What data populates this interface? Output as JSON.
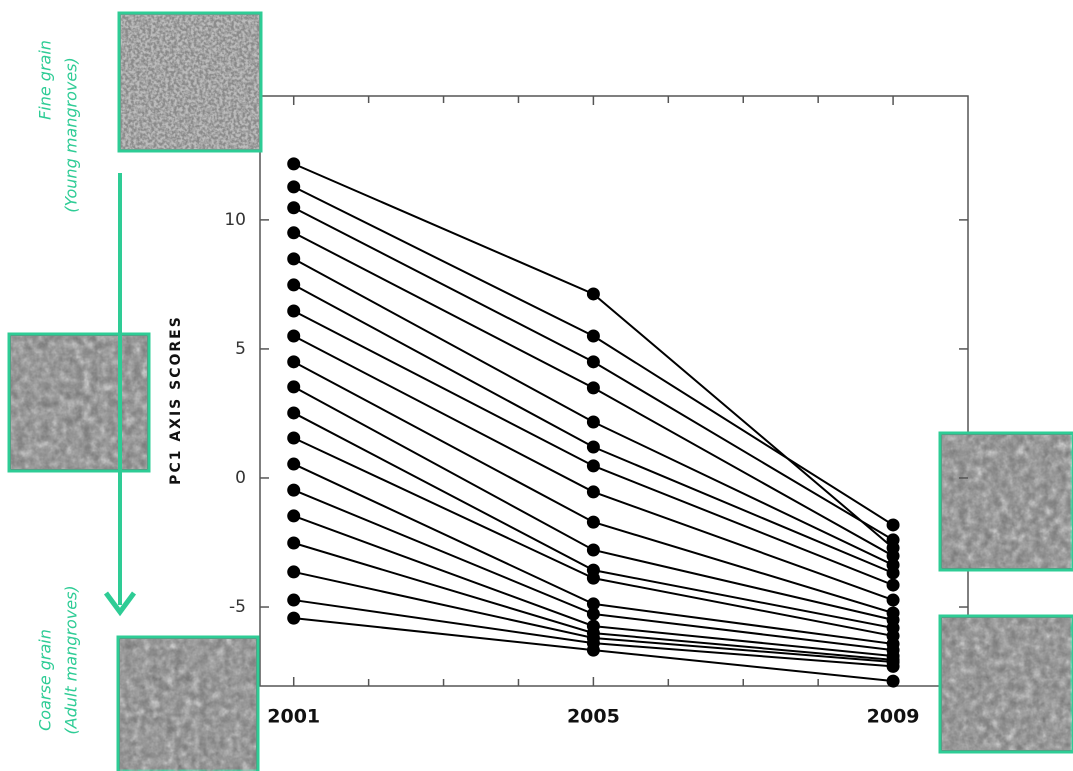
{
  "chart_data": {
    "type": "line",
    "y_label": "PC1 AXIS SCORES",
    "annotations": [
      "Fine grain",
      "(Young mangroves)",
      "Coarse grain",
      "(Adult mangroves)"
    ],
    "x": [
      2001,
      2005,
      2009
    ],
    "xlim": [
      2000.55,
      2010
    ],
    "xticks": [
      2001,
      2005,
      2009
    ],
    "xminorticks": [
      2002,
      2003,
      2004,
      2006,
      2007,
      2008
    ],
    "ylim": [
      -8.06,
      14.8
    ],
    "yticks": [
      -5,
      0,
      5,
      10
    ],
    "color": "#000000",
    "series": [
      {
        "values": [
          12.17,
          7.13,
          -2.71
        ]
      },
      {
        "values": [
          11.28,
          5.5,
          -1.82
        ]
      },
      {
        "values": [
          10.47,
          4.5,
          -2.4
        ]
      },
      {
        "values": [
          9.5,
          3.49,
          -3.02
        ]
      },
      {
        "values": [
          8.49,
          2.17,
          -3.37
        ]
      },
      {
        "values": [
          7.48,
          1.2,
          -3.68
        ]
      },
      {
        "values": [
          6.47,
          0.47,
          -4.15
        ]
      },
      {
        "values": [
          5.5,
          -0.54,
          -4.73
        ]
      },
      {
        "values": [
          4.5,
          -1.71,
          -5.23
        ]
      },
      {
        "values": [
          3.53,
          -2.79,
          -5.5
        ]
      },
      {
        "values": [
          2.52,
          -3.57,
          -5.81
        ]
      },
      {
        "values": [
          1.55,
          -3.88,
          -6.12
        ]
      },
      {
        "values": [
          0.54,
          -4.88,
          -6.43
        ]
      },
      {
        "values": [
          -0.47,
          -5.27,
          -6.67
        ]
      },
      {
        "values": [
          -1.47,
          -5.74,
          -6.9
        ]
      },
      {
        "values": [
          -2.52,
          -6.01,
          -7.05
        ]
      },
      {
        "values": [
          -3.64,
          -6.2,
          -7.13
        ]
      },
      {
        "values": [
          -4.73,
          -6.4,
          -7.3
        ]
      },
      {
        "values": [
          -5.43,
          -6.67,
          -7.87
        ]
      }
    ]
  }
}
